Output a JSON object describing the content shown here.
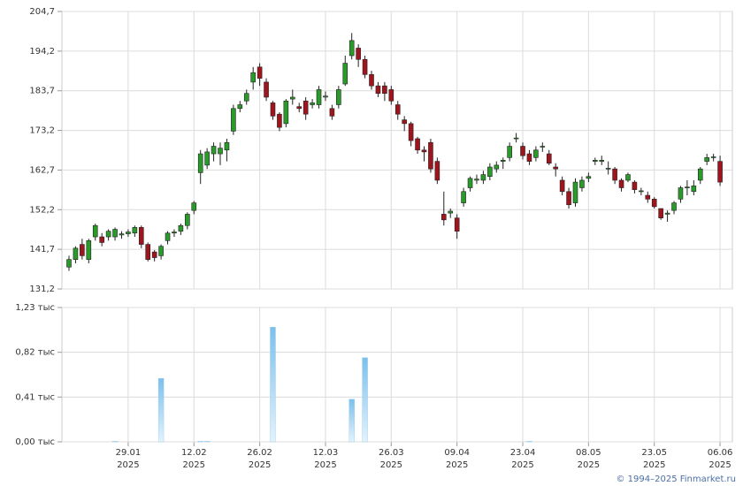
{
  "chart_data": [
    {
      "type": "candlestick",
      "up_color": "#2a9a2a",
      "down_color": "#a0141e",
      "ylim": [
        131.2,
        204.7
      ],
      "yticks": [
        {
          "value": 131.2,
          "label": "131,2"
        },
        {
          "value": 141.7,
          "label": "141,7"
        },
        {
          "value": 152.2,
          "label": "152,2"
        },
        {
          "value": 162.7,
          "label": "162,7"
        },
        {
          "value": 173.2,
          "label": "173,2"
        },
        {
          "value": 183.7,
          "label": "183,7"
        },
        {
          "value": 194.2,
          "label": "194,2"
        },
        {
          "value": 204.7,
          "label": "204,7"
        }
      ],
      "grid": true,
      "open": [
        137,
        139,
        143,
        139,
        145,
        145,
        145,
        145,
        145.5,
        145.8,
        146,
        147.5,
        143,
        141,
        140,
        144,
        146,
        146.5,
        148,
        152,
        162,
        164,
        167,
        167,
        168,
        173,
        179,
        181,
        186,
        190,
        186,
        180.5,
        177.5,
        175,
        181.5,
        179.5,
        181,
        180,
        180,
        182,
        179,
        180,
        185.5,
        193,
        195,
        192,
        188,
        185,
        185,
        184,
        180,
        176,
        175,
        171,
        168,
        170,
        165,
        151,
        151.3,
        150,
        154,
        158,
        160,
        160,
        161,
        163,
        165,
        166,
        171,
        169,
        167,
        166,
        168.8,
        167,
        163.5,
        160,
        157,
        154,
        158,
        160.5,
        165,
        165,
        163,
        163,
        160,
        160,
        159.5,
        157,
        156,
        155,
        152.5,
        151,
        152,
        155,
        158,
        157,
        160,
        165,
        166,
        165
      ],
      "high": [
        140,
        142.5,
        144.5,
        144.5,
        148.5,
        146,
        147,
        147.5,
        146.5,
        147,
        148,
        148,
        143.5,
        141.5,
        143,
        146.5,
        147,
        148.5,
        151.5,
        154.5,
        168,
        168.5,
        170,
        170,
        171,
        180,
        181,
        184,
        190,
        191,
        187,
        181,
        178,
        181.5,
        184,
        180.5,
        182,
        181.5,
        185,
        183.5,
        180,
        185,
        193,
        199,
        196,
        193,
        189,
        186,
        186,
        185,
        181,
        177,
        175.5,
        171.5,
        169,
        171,
        166,
        157,
        152.5,
        151,
        158,
        161,
        161.5,
        162.5,
        164.5,
        165,
        166,
        170,
        172.5,
        170,
        168,
        169,
        170,
        168,
        164.5,
        161,
        158,
        160.5,
        161,
        162,
        166,
        166.5,
        165,
        163.5,
        160.5,
        162,
        160,
        158,
        157,
        155.5,
        152.5,
        152,
        154.5,
        158.5,
        160,
        160,
        163.5,
        167,
        167,
        166.5
      ],
      "low": [
        136,
        138,
        139,
        138,
        144,
        142.5,
        144,
        144,
        144.5,
        145,
        145,
        142,
        138.5,
        138.5,
        139,
        143,
        145,
        145.5,
        147,
        151,
        159,
        163,
        165,
        164,
        165,
        172,
        178,
        180,
        184,
        185,
        181,
        176,
        173,
        174,
        180,
        178,
        176,
        179,
        179,
        181,
        176,
        179,
        185,
        192,
        190,
        187,
        184,
        182,
        181,
        180,
        176,
        173,
        169,
        167,
        165,
        162,
        159,
        148,
        150,
        144.5,
        153,
        157,
        159,
        159,
        160,
        162,
        163,
        165,
        170,
        165.5,
        164,
        165,
        167.5,
        164,
        161,
        156,
        152.5,
        153,
        157,
        159.5,
        164,
        164,
        161.5,
        159,
        157,
        159.5,
        156.5,
        156,
        154,
        152.5,
        149.5,
        149,
        151,
        154,
        156,
        156,
        159,
        164,
        165,
        158.5
      ],
      "close": [
        139,
        142,
        140,
        144,
        148,
        143.5,
        146.5,
        147,
        145.8,
        146.3,
        147.5,
        143,
        139,
        139.5,
        142.5,
        146,
        146.3,
        148,
        151,
        154,
        167,
        167.5,
        169,
        168.5,
        170,
        179,
        180,
        183,
        188.5,
        187,
        182,
        177,
        174,
        181,
        182,
        179,
        177.5,
        180.5,
        184,
        182.3,
        177,
        184,
        191,
        197,
        192,
        188,
        185,
        183,
        183,
        181,
        177.5,
        175,
        170.5,
        168,
        167.5,
        163,
        160,
        149.5,
        151.8,
        146.5,
        157,
        160.5,
        160.3,
        161.5,
        163.5,
        164,
        165.3,
        169,
        171.2,
        166.5,
        165,
        168,
        169,
        164.5,
        163,
        157,
        153.5,
        159.5,
        160,
        161,
        165.3,
        165.3,
        163.2,
        160,
        158,
        161.5,
        157.5,
        157.2,
        155,
        153,
        150,
        151.3,
        154,
        158,
        158.2,
        158.5,
        163,
        166,
        166.2,
        159.5
      ]
    },
    {
      "type": "bar",
      "color": "#7cc0ec",
      "categories": [
        null,
        null,
        null,
        null,
        null,
        null,
        null,
        null,
        null,
        "29.01",
        null,
        null,
        null,
        null,
        null,
        null,
        null,
        null,
        null,
        "12.02",
        null,
        null,
        null,
        null,
        null,
        null,
        null,
        null,
        null,
        "26.02",
        null,
        null,
        null,
        null,
        null,
        null,
        null,
        null,
        null,
        "12.03",
        null,
        null,
        null,
        null,
        null,
        null,
        null,
        null,
        null,
        "26.03",
        null,
        null,
        null,
        null,
        null,
        null,
        null,
        null,
        null,
        "09.04",
        null,
        null,
        null,
        null,
        null,
        null,
        null,
        null,
        null,
        "23.04",
        null,
        null,
        null,
        null,
        null,
        null,
        null,
        null,
        null,
        "08.05",
        null,
        null,
        null,
        null,
        null,
        null,
        null,
        null,
        null,
        "23.05",
        null,
        null,
        null,
        null,
        null,
        null,
        null,
        null,
        null,
        "06.06"
      ],
      "year": "2025",
      "values": [
        0,
        0,
        0,
        0,
        0,
        0,
        0,
        0.005,
        0,
        0,
        0,
        0,
        0,
        0,
        0.58,
        0,
        0,
        0,
        0,
        0,
        0.005,
        0.005,
        0,
        0,
        0,
        0,
        0,
        0,
        0,
        0,
        0,
        1.05,
        0,
        0,
        0,
        0,
        0,
        0,
        0,
        0,
        0,
        0,
        0,
        0.39,
        0,
        0.77,
        0,
        0,
        0,
        0,
        0,
        0,
        0,
        0,
        0,
        0,
        0,
        0,
        0,
        0,
        0,
        0,
        0,
        0,
        0,
        0,
        0,
        0,
        0,
        0,
        0.005,
        0,
        0,
        0,
        0,
        0,
        0,
        0,
        0,
        0,
        0,
        0,
        0,
        0,
        0,
        0,
        0,
        0,
        0,
        0,
        0,
        0,
        0,
        0,
        0,
        0,
        0,
        0,
        0,
        0
      ],
      "ylim": [
        0,
        1.23
      ],
      "yticks": [
        {
          "value": 0,
          "label": "0,00 тыс"
        },
        {
          "value": 0.41,
          "label": "0,41 тыс"
        },
        {
          "value": 0.82,
          "label": "0,82 тыс"
        },
        {
          "value": 1.23,
          "label": "1,23 тыс"
        }
      ],
      "grid": true
    }
  ],
  "footer": "© 1994–2025 Finmarket.ru"
}
